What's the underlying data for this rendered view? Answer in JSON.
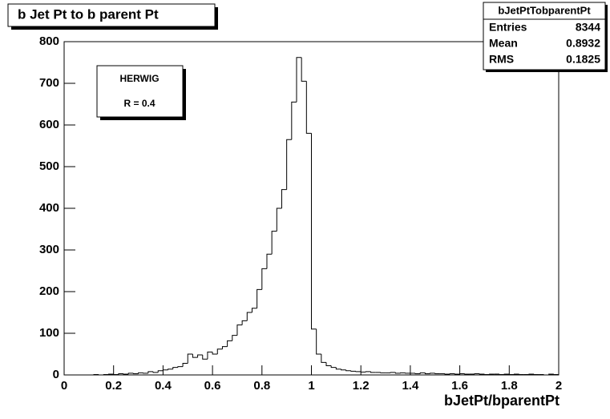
{
  "chart_data": {
    "type": "histogram",
    "title": "b Jet Pt to b parent Pt",
    "xlabel": "bJetPt/bparentPt",
    "bins": [
      0,
      0.02,
      0.04,
      0.06,
      0.08,
      0.1,
      0.12,
      0.14,
      0.16,
      0.18,
      0.2,
      0.22,
      0.24,
      0.26,
      0.28,
      0.3,
      0.32,
      0.34,
      0.36,
      0.38,
      0.4,
      0.42,
      0.44,
      0.46,
      0.48,
      0.5,
      0.52,
      0.54,
      0.56,
      0.58,
      0.6,
      0.62,
      0.64,
      0.66,
      0.68,
      0.7,
      0.72,
      0.74,
      0.76,
      0.78,
      0.8,
      0.82,
      0.84,
      0.86,
      0.88,
      0.9,
      0.92,
      0.94,
      0.96,
      0.98,
      1,
      1.02,
      1.04,
      1.06,
      1.08,
      1.1,
      1.12,
      1.14,
      1.16,
      1.18,
      1.2,
      1.22,
      1.24,
      1.26,
      1.28,
      1.3,
      1.32,
      1.34,
      1.36,
      1.38,
      1.4,
      1.42,
      1.44,
      1.46,
      1.48,
      1.5,
      1.52,
      1.54,
      1.56,
      1.58,
      1.6,
      1.62,
      1.64,
      1.66,
      1.68,
      1.7,
      1.72,
      1.74,
      1.76,
      1.78,
      1.8,
      1.82,
      1.84,
      1.86,
      1.88,
      1.9,
      1.92,
      1.94,
      1.96,
      1.98,
      2
    ],
    "counts": [
      0,
      0,
      0,
      0,
      0,
      0,
      1,
      0,
      1,
      2,
      1,
      3,
      2,
      4,
      3,
      5,
      4,
      8,
      6,
      10,
      12,
      14,
      18,
      20,
      28,
      50,
      42,
      48,
      38,
      55,
      50,
      62,
      68,
      82,
      95,
      120,
      130,
      150,
      160,
      205,
      255,
      290,
      345,
      400,
      445,
      565,
      655,
      762,
      705,
      580,
      110,
      50,
      30,
      22,
      18,
      14,
      12,
      10,
      9,
      8,
      7,
      8,
      6,
      6,
      5,
      5,
      6,
      4,
      5,
      4,
      4,
      3,
      5,
      3,
      4,
      3,
      3,
      2,
      3,
      2,
      3,
      2,
      2,
      3,
      2,
      1,
      2,
      2,
      1,
      2,
      1,
      2,
      1,
      1,
      2,
      1,
      1,
      0,
      2,
      1
    ],
    "color": "#000000",
    "xlim": [
      0,
      2
    ],
    "xticks": [
      0,
      0.2,
      0.4,
      0.6,
      0.8,
      1,
      1.2,
      1.4,
      1.6,
      1.8,
      2
    ],
    "ylim": [
      0,
      800
    ],
    "yticks": [
      0,
      100,
      200,
      300,
      400,
      500,
      600,
      700,
      800
    ],
    "stats": {
      "name": "bJetPtTobparentPt",
      "rows": [
        {
          "label": "Entries",
          "value": 8344
        },
        {
          "label": "Mean",
          "value": 0.8932
        },
        {
          "label": "RMS",
          "value": 0.1825
        }
      ]
    },
    "annotations": [
      "HERWIG",
      "R = 0.4"
    ]
  }
}
